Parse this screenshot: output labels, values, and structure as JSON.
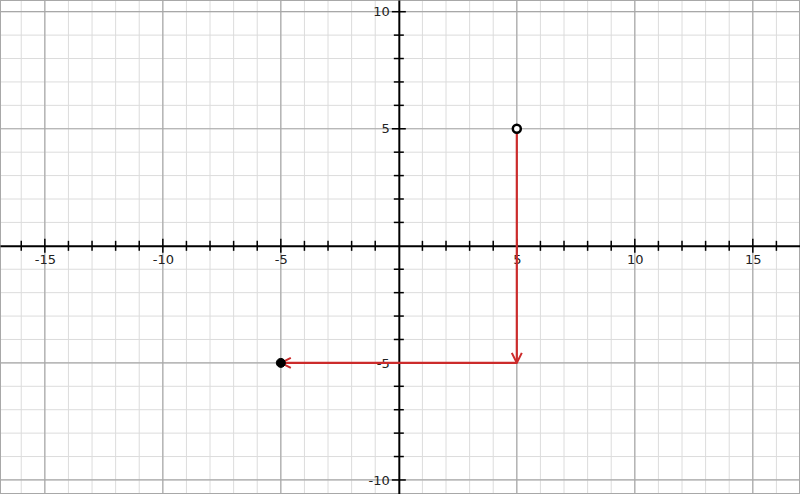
{
  "chart_data": {
    "type": "scatter",
    "grid": true,
    "xlim": [
      -16.9,
      17
    ],
    "ylim": [
      -10.6,
      10.5
    ],
    "xticks": [
      -15,
      -10,
      -5,
      5,
      10,
      15
    ],
    "yticks": [
      -10,
      -5,
      5,
      10
    ],
    "x_minor_ticks": [
      -16,
      -15,
      -14,
      -13,
      -12,
      -11,
      -10,
      -9,
      -8,
      -7,
      -6,
      -5,
      -4,
      -3,
      -2,
      -1,
      1,
      2,
      3,
      4,
      5,
      6,
      7,
      8,
      9,
      10,
      11,
      12,
      13,
      14,
      15,
      16
    ],
    "y_minor_ticks": [
      -10,
      -9,
      -8,
      -7,
      -6,
      -5,
      -4,
      -3,
      -2,
      -1,
      1,
      2,
      3,
      4,
      5,
      6,
      7,
      8,
      9,
      10
    ],
    "series": [
      {
        "type": "scatter",
        "marker": "circle-open",
        "color": "#000000",
        "x": [
          5
        ],
        "values": [
          5
        ]
      },
      {
        "type": "scatter",
        "marker": "circle",
        "color": "#000000",
        "x": [
          -5
        ],
        "values": [
          -5
        ]
      },
      {
        "type": "line",
        "marker": "arrow",
        "color": "#cc2b2b",
        "x": [
          5,
          5,
          -5
        ],
        "values": [
          5,
          -5,
          -5
        ]
      }
    ]
  }
}
